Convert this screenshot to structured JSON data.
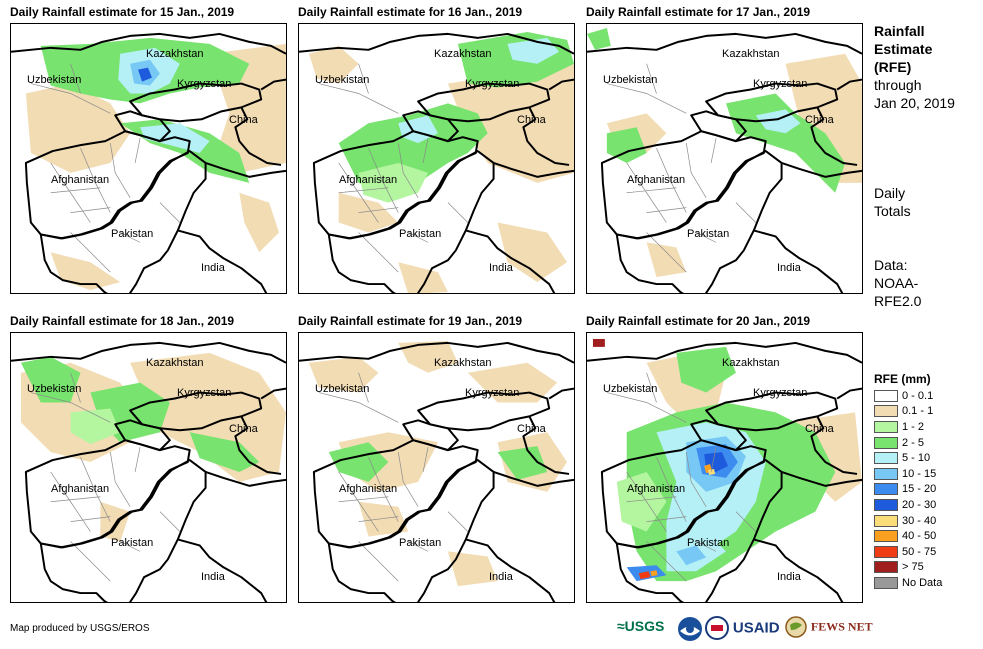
{
  "panels": [
    {
      "title": "Daily Rainfall estimate for 15 Jan., 2019",
      "variant": "p15"
    },
    {
      "title": "Daily Rainfall estimate for 16 Jan., 2019",
      "variant": "p16"
    },
    {
      "title": "Daily Rainfall estimate for 17 Jan., 2019",
      "variant": "p17"
    },
    {
      "title": "Daily Rainfall estimate for 18 Jan., 2019",
      "variant": "p18"
    },
    {
      "title": "Daily Rainfall estimate for 19 Jan., 2019",
      "variant": "p19"
    },
    {
      "title": "Daily Rainfall estimate for 20 Jan., 2019",
      "variant": "p20"
    }
  ],
  "country_labels": {
    "kazakhstan": "Kazakhstan",
    "uzbekistan": "Uzbekistan",
    "kyrgyzstan": "Kyrgyzstan",
    "china": "China",
    "afghanistan": "Afghanistan",
    "pakistan": "Pakistan",
    "india": "India"
  },
  "side_text": {
    "title_lines": [
      "Rainfall",
      "Estimate",
      "(RFE)"
    ],
    "through": "through",
    "date": "Jan 20, 2019",
    "daily": "Daily",
    "totals": "Totals",
    "data_lines": [
      "Data:",
      "NOAA-",
      "RFE2.0"
    ]
  },
  "legend": {
    "title": "RFE (mm)",
    "items": [
      {
        "label": "0 - 0.1",
        "color": "#ffffff"
      },
      {
        "label": "0.1 - 1",
        "color": "#f2dcb4"
      },
      {
        "label": "1 - 2",
        "color": "#b4f5a0"
      },
      {
        "label": "2 - 5",
        "color": "#78e36e"
      },
      {
        "label": "5 - 10",
        "color": "#b4f0f5"
      },
      {
        "label": "10 - 15",
        "color": "#78c8f5"
      },
      {
        "label": "15 - 20",
        "color": "#3c8cf0"
      },
      {
        "label": "20 - 30",
        "color": "#1e5adc"
      },
      {
        "label": "30 - 40",
        "color": "#fadc78"
      },
      {
        "label": "40 - 50",
        "color": "#faa01e"
      },
      {
        "label": "50 - 75",
        "color": "#f03c14"
      },
      {
        "label": "> 75",
        "color": "#a01e1e"
      },
      {
        "label": "No Data",
        "color": "#999999"
      }
    ]
  },
  "credit": "Map produced by USGS/EROS",
  "logos": {
    "usgs": "≈USGS",
    "usaid": "USAID",
    "fewsnet": "FEWS NET"
  }
}
